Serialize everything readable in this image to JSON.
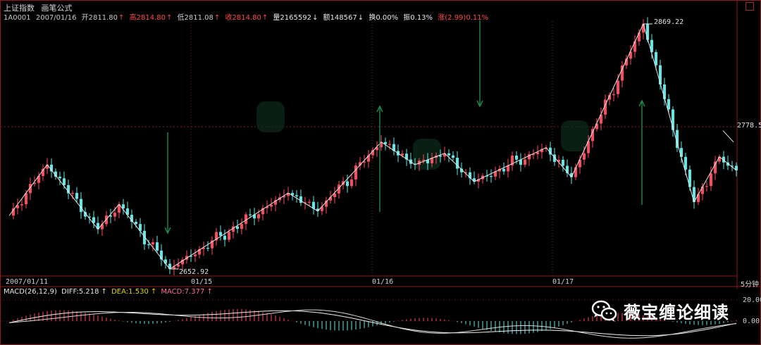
{
  "header": {
    "title": "上证指数",
    "formula": "画笔公式",
    "code": "1A0001",
    "date": "2007/01/16",
    "open_label": "开",
    "open_value": "2811.80",
    "high_label": "高",
    "high_value": "2814.80",
    "low_label": "低",
    "low_value": "2811.08",
    "close_label": "收",
    "close_value": "2814.80",
    "volume_label": "量",
    "volume_value": "2165592",
    "amount_label": "额",
    "amount_value": "148567",
    "turnover_label": "换",
    "turnover_value": "0.00%",
    "amplitude_label": "振",
    "amplitude_value": "0.13%",
    "change_label": "涨",
    "change_value": "(2.99)",
    "change_pct": "0.11%"
  },
  "price_axis": {
    "current_price": "2778.5",
    "high_marker": "2869.22",
    "low_marker": "2652.92"
  },
  "time_axis": {
    "labels": [
      "2007/01/11",
      "01/15",
      "01/16",
      "01/17"
    ],
    "period": "5分钟"
  },
  "macd": {
    "name": "MACD(26,12,9)",
    "diff_label": "DIFF:",
    "diff_value": "5.218",
    "dea_label": "DEA:",
    "dea_value": "1.530",
    "macd_label": "MACD:",
    "macd_value": "7.377",
    "ticks": [
      "20.00",
      "0.00"
    ]
  },
  "watermark": {
    "text": "薇宝缠论细读",
    "icon": "wechat-icon"
  },
  "colors": {
    "up": "#ff4a5c",
    "down": "#5fe8e8",
    "stroke_line": "#e8e8e8",
    "arrow": "#1f8a4c",
    "grid": "#8a1d1d"
  },
  "chart_data": {
    "type": "candlestick",
    "pivots": [
      {
        "bar": 0,
        "price": 2700
      },
      {
        "bar": 9,
        "price": 2745
      },
      {
        "bar": 21,
        "price": 2688
      },
      {
        "bar": 26,
        "price": 2710
      },
      {
        "bar": 38,
        "price": 2652.92
      },
      {
        "bar": 66,
        "price": 2720
      },
      {
        "bar": 73,
        "price": 2704
      },
      {
        "bar": 88,
        "price": 2765
      },
      {
        "bar": 96,
        "price": 2745
      },
      {
        "bar": 103,
        "price": 2755
      },
      {
        "bar": 110,
        "price": 2730
      },
      {
        "bar": 127,
        "price": 2760
      },
      {
        "bar": 133,
        "price": 2734
      },
      {
        "bar": 150,
        "price": 2869.22
      },
      {
        "bar": 162,
        "price": 2712
      },
      {
        "bar": 168,
        "price": 2752
      },
      {
        "bar": 172,
        "price": 2740
      }
    ]
  }
}
